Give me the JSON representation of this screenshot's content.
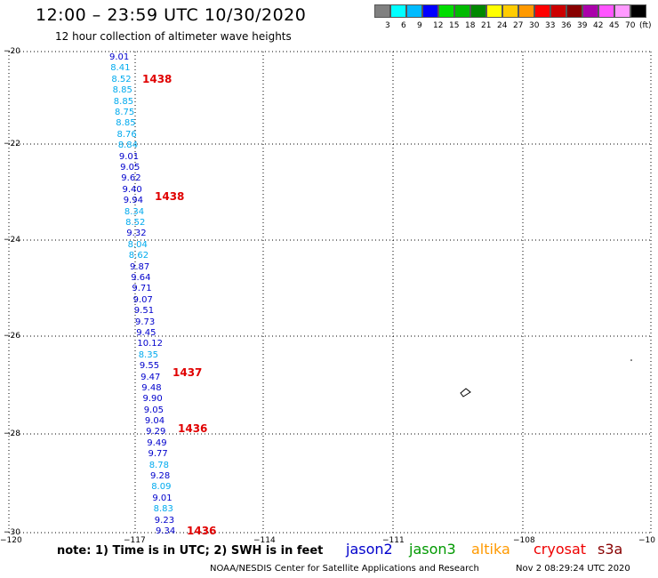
{
  "title": "12:00 – 23:59 UTC 10/30/2020",
  "subtitle": "12 hour collection of altimeter wave heights",
  "color_scale": {
    "swatches": [
      "#808080",
      "#00ffff",
      "#00bbff",
      "#0000ff",
      "#00dd00",
      "#00bb00",
      "#008800",
      "#ffff00",
      "#ffcc00",
      "#ff9900",
      "#ff0000",
      "#cc0000",
      "#880000",
      "#aa00aa",
      "#ff55ff",
      "#ff99ff",
      "#000000"
    ],
    "labels": [
      "3",
      "6",
      "9",
      "12",
      "15",
      "18",
      "21",
      "24",
      "27",
      "30",
      "33",
      "36",
      "39",
      "42",
      "45",
      "70",
      "(ft)"
    ]
  },
  "map": {
    "lat_labels": [
      "−20",
      "−22",
      "−24",
      "−26",
      "−28",
      "−30"
    ],
    "lon_labels": [
      "−120",
      "−117",
      "−114",
      "−111",
      "−108",
      "−10"
    ],
    "swh_readings": [
      {
        "value": "9.01",
        "color": "#0000cc"
      },
      {
        "value": "8.41",
        "color": "#00aaee"
      },
      {
        "value": "8.52",
        "color": "#00aaee"
      },
      {
        "value": "8.85",
        "color": "#00aaee"
      },
      {
        "value": "8.85",
        "color": "#00aaee"
      },
      {
        "value": "8.75",
        "color": "#00aaee"
      },
      {
        "value": "8.85",
        "color": "#00aaee"
      },
      {
        "value": "8.76",
        "color": "#00aaee"
      },
      {
        "value": "8.84",
        "color": "#00aaee"
      },
      {
        "value": "9.01",
        "color": "#0000cc"
      },
      {
        "value": "9.05",
        "color": "#0000cc"
      },
      {
        "value": "9.62",
        "color": "#0000cc"
      },
      {
        "value": "9.40",
        "color": "#0000cc"
      },
      {
        "value": "9.94",
        "color": "#0000cc"
      },
      {
        "value": "8.34",
        "color": "#00aaee"
      },
      {
        "value": "8.52",
        "color": "#00aaee"
      },
      {
        "value": "9.32",
        "color": "#0000cc"
      },
      {
        "value": "8.04",
        "color": "#00aaee"
      },
      {
        "value": "8.62",
        "color": "#00aaee"
      },
      {
        "value": "9.87",
        "color": "#0000cc"
      },
      {
        "value": "9.64",
        "color": "#0000cc"
      },
      {
        "value": "9.71",
        "color": "#0000cc"
      },
      {
        "value": "9.07",
        "color": "#0000cc"
      },
      {
        "value": "9.51",
        "color": "#0000cc"
      },
      {
        "value": "9.73",
        "color": "#0000cc"
      },
      {
        "value": "9.45",
        "color": "#0000cc"
      },
      {
        "value": "10.12",
        "color": "#0000cc"
      },
      {
        "value": "8.35",
        "color": "#00aaee"
      },
      {
        "value": "9.55",
        "color": "#0000cc"
      },
      {
        "value": "9.47",
        "color": "#0000cc"
      },
      {
        "value": "9.48",
        "color": "#0000cc"
      },
      {
        "value": "9.90",
        "color": "#0000cc"
      },
      {
        "value": "9.05",
        "color": "#0000cc"
      },
      {
        "value": "9.04",
        "color": "#0000cc"
      },
      {
        "value": "9.29",
        "color": "#0000cc"
      },
      {
        "value": "9.49",
        "color": "#0000cc"
      },
      {
        "value": "9.77",
        "color": "#0000cc"
      },
      {
        "value": "8.78",
        "color": "#00aaee"
      },
      {
        "value": "9.28",
        "color": "#0000cc"
      },
      {
        "value": "8.09",
        "color": "#00aaee"
      },
      {
        "value": "9.01",
        "color": "#0000cc"
      },
      {
        "value": "8.83",
        "color": "#00aaee"
      },
      {
        "value": "9.23",
        "color": "#0000cc"
      },
      {
        "value": "9.34",
        "color": "#0000cc"
      }
    ],
    "time_labels": [
      "1438",
      "1438",
      "1437",
      "1436",
      "1436"
    ]
  },
  "footer": {
    "note": "note: 1) Time is in UTC; 2) SWH is in feet",
    "satellites": [
      {
        "name": "jason2",
        "color": "#0000cc"
      },
      {
        "name": "jason3",
        "color": "#009900"
      },
      {
        "name": "altika",
        "color": "#ff9900"
      },
      {
        "name": "cryosat",
        "color": "#ee0000"
      },
      {
        "name": "s3a",
        "color": "#880000"
      }
    ],
    "credit": "NOAA/NESDIS Center for Satellite Applications and Research",
    "timestamp": "Nov  2 08:29:24 UTC 2020"
  }
}
